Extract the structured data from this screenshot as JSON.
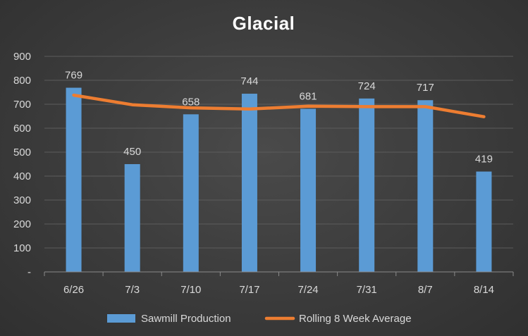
{
  "chart_data": {
    "type": "bar",
    "title": "Glacial",
    "xlabel": "",
    "ylabel": "",
    "categories": [
      "6/26",
      "7/3",
      "7/10",
      "7/17",
      "7/24",
      "7/31",
      "8/7",
      "8/14"
    ],
    "ylim": [
      0,
      900
    ],
    "yticks": [
      0,
      100,
      200,
      300,
      400,
      500,
      600,
      700,
      800,
      900
    ],
    "ytick_labels": [
      "-",
      "100",
      "200",
      "300",
      "400",
      "500",
      "600",
      "700",
      "800",
      "900"
    ],
    "grid": true,
    "legend_position": "bottom",
    "series": [
      {
        "name": "Sawmill Production",
        "type": "bar",
        "color": "#5b9bd5",
        "values": [
          769,
          450,
          658,
          744,
          681,
          724,
          717,
          419
        ],
        "data_labels": [
          "769",
          "450",
          "658",
          "744",
          "681",
          "724",
          "717",
          "419"
        ]
      },
      {
        "name": "Rolling 8 Week Average",
        "type": "line",
        "color": "#ed7d31",
        "values": [
          738,
          698,
          685,
          680,
          692,
          690,
          690,
          648
        ]
      }
    ]
  }
}
